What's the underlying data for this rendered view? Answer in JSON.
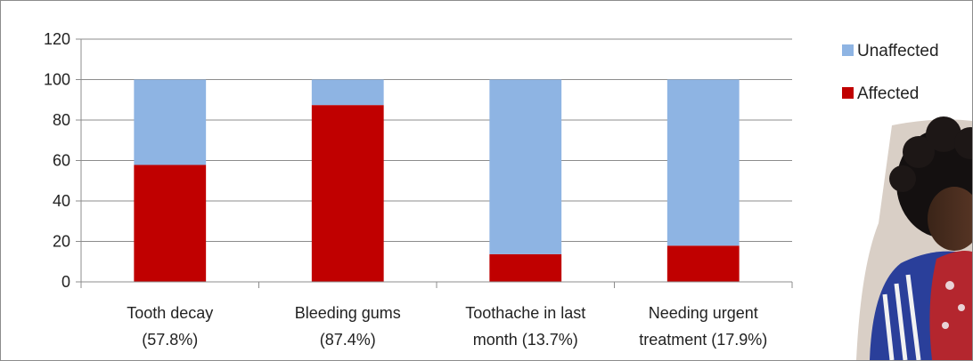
{
  "chart_data": {
    "type": "bar",
    "stacked": true,
    "categories": [
      [
        "Tooth decay",
        "(57.8%)"
      ],
      [
        "Bleeding gums",
        "(87.4%)"
      ],
      [
        "Toothache in last",
        "month (13.7%)"
      ],
      [
        "Needing urgent",
        "treatment (17.9%)"
      ]
    ],
    "series": [
      {
        "name": "Affected",
        "color": "#c00000",
        "values": [
          57.8,
          87.4,
          13.7,
          17.9
        ]
      },
      {
        "name": "Unaffected",
        "color": "#8eb4e3",
        "values": [
          42.2,
          12.6,
          86.3,
          82.1
        ]
      }
    ],
    "ylim": [
      0,
      120
    ],
    "yticks": [
      0,
      20,
      40,
      60,
      80,
      100,
      120
    ],
    "grid": true,
    "legend_position": "top-right",
    "legend_order": [
      "Unaffected",
      "Affected"
    ]
  },
  "photo": {
    "description_icon": "person-photo"
  }
}
